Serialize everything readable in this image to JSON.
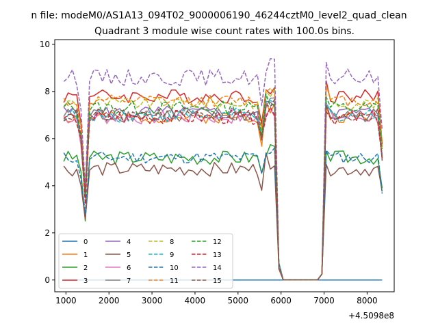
{
  "figure": {
    "suptitle": "n file: modeM0/AS1A13_094T02_9000006190_46244cztM0_level2_quad_clean",
    "title": "Quadrant 3 module wise count rates with 100.0s bins.",
    "x_offset_label": "+4.5098e8"
  },
  "chart_data": {
    "type": "line",
    "title": "Quadrant 3 module wise count rates with 100.0s bins.",
    "xlabel": "",
    "ylabel": "",
    "x_offset": 450980000,
    "xlim": [
      740,
      8630
    ],
    "ylim": [
      -0.5,
      10.2
    ],
    "x_ticks": [
      1000,
      2000,
      3000,
      4000,
      5000,
      6000,
      7000,
      8000
    ],
    "x_tick_labels": [
      "1000",
      "2000",
      "3000",
      "4000",
      "5000",
      "6000",
      "7000",
      "8000"
    ],
    "y_ticks": [
      0,
      2,
      4,
      6,
      8,
      10
    ],
    "y_tick_labels": [
      "0",
      "2",
      "4",
      "6",
      "8",
      "10"
    ],
    "grid": false,
    "legend": {
      "placement": "lower-left",
      "columns": 4
    },
    "x": [
      950,
      1050,
      1150,
      1250,
      1350,
      1450,
      1550,
      1650,
      1750,
      1850,
      1950,
      2050,
      2150,
      2250,
      2350,
      2450,
      2550,
      2650,
      2750,
      2850,
      2950,
      3050,
      3150,
      3250,
      3350,
      3450,
      3550,
      3650,
      3750,
      3850,
      3950,
      4050,
      4150,
      4250,
      4350,
      4450,
      4550,
      4650,
      4750,
      4850,
      4950,
      5050,
      5150,
      5250,
      5350,
      5450,
      5550,
      5650,
      5750,
      5850,
      5950,
      6050,
      6150,
      6250,
      6350,
      6450,
      6550,
      6650,
      6750,
      6850,
      6950,
      7050,
      7150,
      7250,
      7350,
      7450,
      7550,
      7650,
      7750,
      7850,
      7950,
      8050,
      8150,
      8250,
      8350
    ],
    "series": [
      {
        "name": "0",
        "color": "#1f77b4",
        "dash": "solid",
        "base": 0,
        "noise": 0,
        "seed": 1
      },
      {
        "name": "1",
        "color": "#ff7f0e",
        "dash": "solid",
        "base": 6.9,
        "noise": 0.25,
        "seed": 2
      },
      {
        "name": "2",
        "color": "#2ca02c",
        "dash": "solid",
        "base": 5.2,
        "noise": 0.3,
        "seed": 3
      },
      {
        "name": "3",
        "color": "#d62728",
        "dash": "solid",
        "base": 7.8,
        "noise": 0.3,
        "seed": 4
      },
      {
        "name": "4",
        "color": "#9467bd",
        "dash": "solid",
        "base": 7.1,
        "noise": 0.3,
        "seed": 5
      },
      {
        "name": "5",
        "color": "#8c564b",
        "dash": "solid",
        "base": 4.7,
        "noise": 0.3,
        "seed": 6
      },
      {
        "name": "6",
        "color": "#e377c2",
        "dash": "solid",
        "base": 6.9,
        "noise": 0.3,
        "seed": 7
      },
      {
        "name": "7",
        "color": "#7f7f7f",
        "dash": "solid",
        "base": 7.0,
        "noise": 0.3,
        "seed": 8
      },
      {
        "name": "8",
        "color": "#bcbd22",
        "dash": "dashed",
        "base": 7.5,
        "noise": 0.25,
        "seed": 9
      },
      {
        "name": "9",
        "color": "#17becf",
        "dash": "dashed",
        "base": 7.0,
        "noise": 0.3,
        "seed": 10
      },
      {
        "name": "10",
        "color": "#1f77b4",
        "dash": "dashed",
        "base": 5.2,
        "noise": 0.25,
        "seed": 11
      },
      {
        "name": "11",
        "color": "#ff7f0e",
        "dash": "dashed",
        "base": 7.6,
        "noise": 0.25,
        "seed": 12
      },
      {
        "name": "12",
        "color": "#2ca02c",
        "dash": "dashed",
        "base": 7.3,
        "noise": 0.3,
        "seed": 13
      },
      {
        "name": "13",
        "color": "#d62728",
        "dash": "dashed",
        "base": 6.9,
        "noise": 0.3,
        "seed": 14
      },
      {
        "name": "14",
        "color": "#9467bd",
        "dash": "dashed",
        "base": 8.6,
        "noise": 0.35,
        "seed": 15
      },
      {
        "name": "15",
        "color": "#8c564b",
        "dash": "dashed",
        "base": 7.0,
        "noise": 0.3,
        "seed": 16
      }
    ]
  }
}
